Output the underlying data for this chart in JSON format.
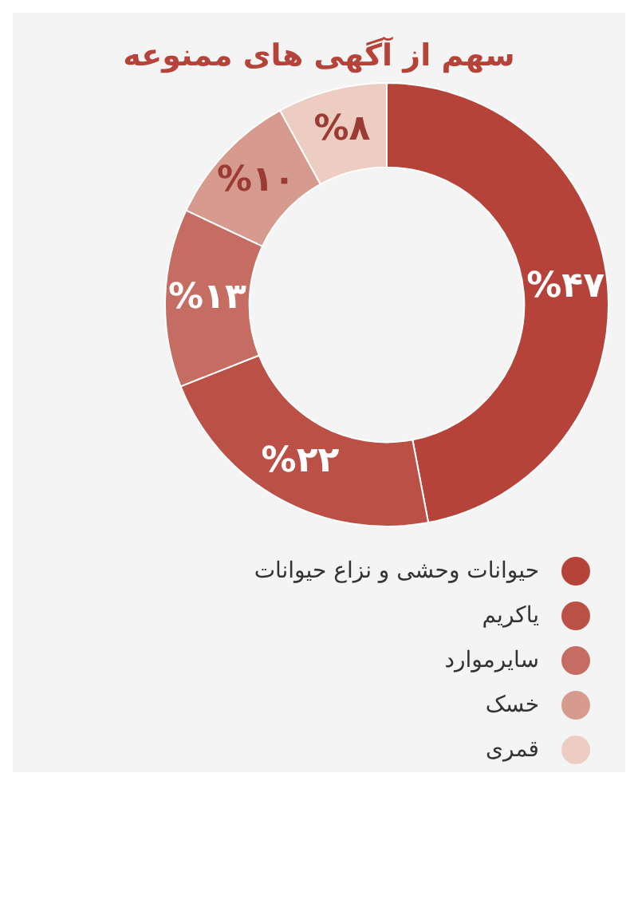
{
  "chart_data": {
    "type": "donut",
    "title": "سهم از آگهی های ممنوعه",
    "categories": [
      "حیوانات وحشی و نزاع حیوانات",
      "یاکریم",
      "سایرموارد",
      "خسک",
      "قمری"
    ],
    "values": [
      47,
      22,
      13,
      10,
      8
    ],
    "colors": [
      "#b5433a",
      "#bb5046",
      "#c56d62",
      "#d69b8e",
      "#edcdc2"
    ],
    "value_labels": [
      "%۴۷",
      "%۲۲",
      "%۱۳",
      "%۱۰",
      "%۸"
    ],
    "legend": "bottom"
  }
}
